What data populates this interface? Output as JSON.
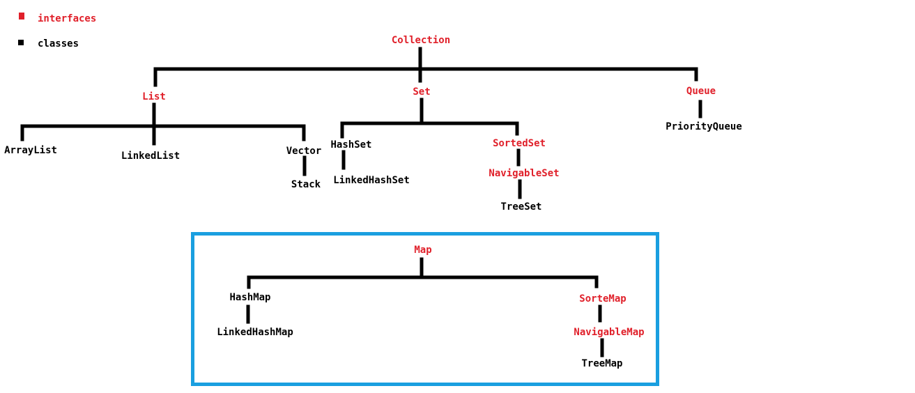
{
  "legend": {
    "interfaces": {
      "label": "interfaces",
      "color": "#e0202a"
    },
    "classes": {
      "label": "classes",
      "color": "#000000"
    }
  },
  "collection_tree": {
    "root": "Collection",
    "list": {
      "name": "List",
      "children": [
        "ArrayList",
        "LinkedList",
        "Vector"
      ],
      "vector_child": "Stack"
    },
    "set": {
      "name": "Set",
      "hashset": "HashSet",
      "hashset_child": "LinkedHashSet",
      "sortedset": "SortedSet",
      "navigableset": "NavigableSet",
      "treeset": "TreeSet"
    },
    "queue": {
      "name": "Queue",
      "child": "PriorityQueue"
    }
  },
  "map_tree": {
    "root": "Map",
    "hashmap": "HashMap",
    "hashmap_child": "LinkedHashMap",
    "sortedmap": "SorteMap",
    "navigablemap": "NavigableMap",
    "treemap": "TreeMap",
    "box_color": "#1a9fe0"
  }
}
